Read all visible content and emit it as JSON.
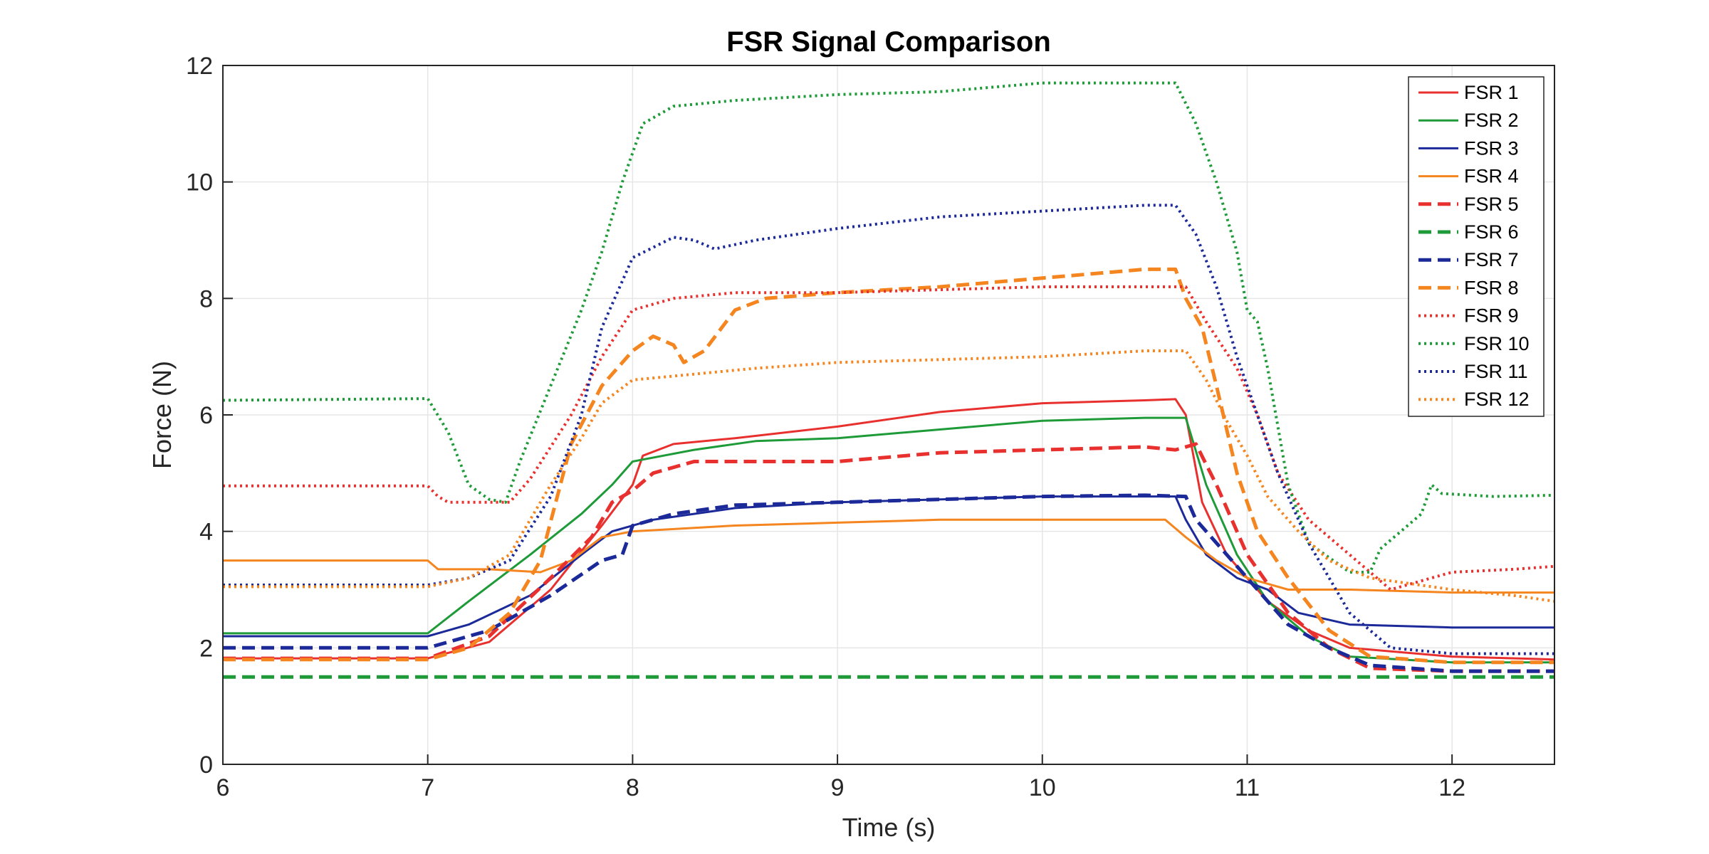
{
  "chart_data": {
    "type": "line",
    "title": "FSR Signal Comparison",
    "xlabel": "Time (s)",
    "ylabel": "Force (N)",
    "xlim": [
      6,
      12.5
    ],
    "ylim": [
      0,
      12
    ],
    "xticks": [
      6,
      7,
      8,
      9,
      10,
      11,
      12
    ],
    "yticks": [
      0,
      2,
      4,
      6,
      8,
      10,
      12
    ],
    "grid": true,
    "legend_position": "top-right",
    "colors": {
      "red": "#e8312f",
      "green": "#1e9b38",
      "blue": "#1c2a99",
      "orange": "#f5851f"
    },
    "series": [
      {
        "name": "FSR 1",
        "color": "#e8312f",
        "style": "solid",
        "points": [
          [
            6,
            1.82
          ],
          [
            7,
            1.82
          ],
          [
            7.3,
            2.1
          ],
          [
            7.6,
            3.0
          ],
          [
            7.85,
            4.1
          ],
          [
            8.0,
            4.8
          ],
          [
            8.05,
            5.3
          ],
          [
            8.2,
            5.5
          ],
          [
            8.5,
            5.6
          ],
          [
            9.0,
            5.8
          ],
          [
            9.5,
            6.05
          ],
          [
            10.0,
            6.2
          ],
          [
            10.5,
            6.25
          ],
          [
            10.65,
            6.27
          ],
          [
            10.7,
            6.0
          ],
          [
            10.78,
            4.5
          ],
          [
            10.9,
            3.6
          ],
          [
            11.1,
            2.8
          ],
          [
            11.3,
            2.3
          ],
          [
            11.5,
            2.0
          ],
          [
            12.0,
            1.85
          ],
          [
            12.5,
            1.8
          ]
        ]
      },
      {
        "name": "FSR 2",
        "color": "#1e9b38",
        "style": "solid",
        "points": [
          [
            6,
            2.25
          ],
          [
            7,
            2.25
          ],
          [
            7.2,
            2.8
          ],
          [
            7.5,
            3.6
          ],
          [
            7.75,
            4.3
          ],
          [
            7.9,
            4.8
          ],
          [
            8.0,
            5.2
          ],
          [
            8.3,
            5.4
          ],
          [
            8.6,
            5.55
          ],
          [
            9.0,
            5.6
          ],
          [
            9.5,
            5.75
          ],
          [
            10.0,
            5.9
          ],
          [
            10.5,
            5.95
          ],
          [
            10.7,
            5.95
          ],
          [
            10.8,
            4.8
          ],
          [
            10.95,
            3.6
          ],
          [
            11.1,
            2.8
          ],
          [
            11.3,
            2.2
          ],
          [
            11.5,
            1.85
          ],
          [
            12.0,
            1.75
          ],
          [
            12.5,
            1.75
          ]
        ]
      },
      {
        "name": "FSR 3",
        "color": "#1c2a99",
        "style": "solid",
        "points": [
          [
            6,
            2.2
          ],
          [
            7,
            2.2
          ],
          [
            7.2,
            2.4
          ],
          [
            7.5,
            2.9
          ],
          [
            7.75,
            3.6
          ],
          [
            7.9,
            4.0
          ],
          [
            8.1,
            4.2
          ],
          [
            8.5,
            4.4
          ],
          [
            9.0,
            4.5
          ],
          [
            9.5,
            4.55
          ],
          [
            10.0,
            4.6
          ],
          [
            10.5,
            4.6
          ],
          [
            10.65,
            4.6
          ],
          [
            10.7,
            4.2
          ],
          [
            10.8,
            3.6
          ],
          [
            10.95,
            3.2
          ],
          [
            11.1,
            3.0
          ],
          [
            11.25,
            2.6
          ],
          [
            11.5,
            2.4
          ],
          [
            12.0,
            2.35
          ],
          [
            12.5,
            2.35
          ]
        ]
      },
      {
        "name": "FSR 4",
        "color": "#f5851f",
        "style": "solid",
        "points": [
          [
            6,
            3.5
          ],
          [
            7,
            3.5
          ],
          [
            7.05,
            3.35
          ],
          [
            7.3,
            3.35
          ],
          [
            7.55,
            3.3
          ],
          [
            7.7,
            3.5
          ],
          [
            7.85,
            3.9
          ],
          [
            8.0,
            4.0
          ],
          [
            8.5,
            4.1
          ],
          [
            9.0,
            4.15
          ],
          [
            9.5,
            4.2
          ],
          [
            10.0,
            4.2
          ],
          [
            10.6,
            4.2
          ],
          [
            10.7,
            3.9
          ],
          [
            10.85,
            3.5
          ],
          [
            11.0,
            3.2
          ],
          [
            11.2,
            3.0
          ],
          [
            11.5,
            3.0
          ],
          [
            12.0,
            2.95
          ],
          [
            12.5,
            2.95
          ]
        ]
      },
      {
        "name": "FSR 5",
        "color": "#e8312f",
        "style": "dashed",
        "points": [
          [
            6,
            1.82
          ],
          [
            7,
            1.82
          ],
          [
            7.3,
            2.2
          ],
          [
            7.6,
            3.2
          ],
          [
            7.8,
            3.9
          ],
          [
            7.9,
            4.5
          ],
          [
            8.0,
            4.7
          ],
          [
            8.1,
            5.0
          ],
          [
            8.3,
            5.2
          ],
          [
            8.6,
            5.2
          ],
          [
            9.0,
            5.2
          ],
          [
            9.5,
            5.35
          ],
          [
            10.0,
            5.4
          ],
          [
            10.5,
            5.45
          ],
          [
            10.65,
            5.4
          ],
          [
            10.75,
            5.5
          ],
          [
            10.85,
            4.8
          ],
          [
            11.0,
            3.6
          ],
          [
            11.2,
            2.6
          ],
          [
            11.4,
            2.0
          ],
          [
            11.6,
            1.65
          ],
          [
            12.0,
            1.6
          ],
          [
            12.5,
            1.6
          ]
        ]
      },
      {
        "name": "FSR 6",
        "color": "#1e9b38",
        "style": "dashed",
        "points": [
          [
            6,
            1.5
          ],
          [
            12.5,
            1.5
          ]
        ]
      },
      {
        "name": "FSR 7",
        "color": "#1c2a99",
        "style": "dashed",
        "points": [
          [
            6,
            2.0
          ],
          [
            7,
            2.0
          ],
          [
            7.3,
            2.3
          ],
          [
            7.6,
            2.9
          ],
          [
            7.85,
            3.5
          ],
          [
            7.95,
            3.6
          ],
          [
            8.0,
            4.1
          ],
          [
            8.2,
            4.3
          ],
          [
            8.5,
            4.45
          ],
          [
            9.0,
            4.5
          ],
          [
            9.5,
            4.55
          ],
          [
            10.0,
            4.6
          ],
          [
            10.5,
            4.62
          ],
          [
            10.7,
            4.6
          ],
          [
            10.75,
            4.2
          ],
          [
            10.85,
            3.8
          ],
          [
            11.0,
            3.2
          ],
          [
            11.2,
            2.4
          ],
          [
            11.4,
            2.0
          ],
          [
            11.6,
            1.7
          ],
          [
            12.0,
            1.6
          ],
          [
            12.5,
            1.6
          ]
        ]
      },
      {
        "name": "FSR 8",
        "color": "#f5851f",
        "style": "dashed",
        "points": [
          [
            6,
            1.8
          ],
          [
            7,
            1.8
          ],
          [
            7.2,
            2.0
          ],
          [
            7.4,
            2.6
          ],
          [
            7.55,
            3.5
          ],
          [
            7.7,
            5.5
          ],
          [
            7.85,
            6.5
          ],
          [
            8.0,
            7.1
          ],
          [
            8.1,
            7.35
          ],
          [
            8.2,
            7.2
          ],
          [
            8.25,
            6.9
          ],
          [
            8.35,
            7.1
          ],
          [
            8.5,
            7.8
          ],
          [
            8.65,
            8.0
          ],
          [
            9.0,
            8.1
          ],
          [
            9.5,
            8.2
          ],
          [
            10.0,
            8.35
          ],
          [
            10.5,
            8.5
          ],
          [
            10.65,
            8.5
          ],
          [
            10.7,
            8.0
          ],
          [
            10.78,
            7.5
          ],
          [
            10.85,
            6.5
          ],
          [
            10.95,
            5.0
          ],
          [
            11.05,
            4.0
          ],
          [
            11.2,
            3.2
          ],
          [
            11.4,
            2.3
          ],
          [
            11.6,
            1.85
          ],
          [
            12.0,
            1.75
          ],
          [
            12.5,
            1.75
          ]
        ]
      },
      {
        "name": "FSR 9",
        "color": "#e8312f",
        "style": "dotted",
        "points": [
          [
            6,
            4.78
          ],
          [
            7,
            4.78
          ],
          [
            7.05,
            4.6
          ],
          [
            7.1,
            4.5
          ],
          [
            7.4,
            4.5
          ],
          [
            7.5,
            4.9
          ],
          [
            7.7,
            6.0
          ],
          [
            7.85,
            7.0
          ],
          [
            8.0,
            7.8
          ],
          [
            8.2,
            8.0
          ],
          [
            8.5,
            8.1
          ],
          [
            9.0,
            8.1
          ],
          [
            9.5,
            8.15
          ],
          [
            10.0,
            8.2
          ],
          [
            10.5,
            8.2
          ],
          [
            10.7,
            8.2
          ],
          [
            10.8,
            7.6
          ],
          [
            10.95,
            6.8
          ],
          [
            11.05,
            6.0
          ],
          [
            11.15,
            5.0
          ],
          [
            11.3,
            4.2
          ],
          [
            11.5,
            3.6
          ],
          [
            11.7,
            3.0
          ],
          [
            11.9,
            3.2
          ],
          [
            12.0,
            3.3
          ],
          [
            12.3,
            3.35
          ],
          [
            12.5,
            3.4
          ]
        ]
      },
      {
        "name": "FSR 10",
        "color": "#1e9b38",
        "style": "dotted",
        "points": [
          [
            6,
            6.25
          ],
          [
            7,
            6.28
          ],
          [
            7.1,
            5.7
          ],
          [
            7.2,
            4.8
          ],
          [
            7.3,
            4.55
          ],
          [
            7.38,
            4.5
          ],
          [
            7.45,
            5.2
          ],
          [
            7.6,
            6.5
          ],
          [
            7.75,
            7.8
          ],
          [
            7.85,
            8.8
          ],
          [
            7.95,
            10.0
          ],
          [
            8.05,
            11.0
          ],
          [
            8.2,
            11.3
          ],
          [
            8.5,
            11.4
          ],
          [
            9.0,
            11.5
          ],
          [
            9.5,
            11.55
          ],
          [
            10.0,
            11.7
          ],
          [
            10.5,
            11.7
          ],
          [
            10.65,
            11.7
          ],
          [
            10.75,
            11.0
          ],
          [
            10.85,
            10.0
          ],
          [
            10.95,
            8.8
          ],
          [
            11.0,
            7.8
          ],
          [
            11.05,
            7.6
          ],
          [
            11.1,
            6.8
          ],
          [
            11.2,
            4.8
          ],
          [
            11.3,
            3.8
          ],
          [
            11.5,
            3.3
          ],
          [
            11.6,
            3.3
          ],
          [
            11.65,
            3.7
          ],
          [
            11.75,
            4.0
          ],
          [
            11.85,
            4.3
          ],
          [
            11.9,
            4.8
          ],
          [
            11.95,
            4.65
          ],
          [
            12.2,
            4.6
          ],
          [
            12.5,
            4.62
          ]
        ]
      },
      {
        "name": "FSR 11",
        "color": "#1c2a99",
        "style": "dotted",
        "points": [
          [
            6,
            3.08
          ],
          [
            7,
            3.08
          ],
          [
            7.2,
            3.2
          ],
          [
            7.4,
            3.5
          ],
          [
            7.6,
            4.6
          ],
          [
            7.75,
            6.0
          ],
          [
            7.85,
            7.5
          ],
          [
            8.0,
            8.7
          ],
          [
            8.2,
            9.05
          ],
          [
            8.3,
            9.0
          ],
          [
            8.4,
            8.85
          ],
          [
            8.6,
            9.0
          ],
          [
            9.0,
            9.2
          ],
          [
            9.5,
            9.4
          ],
          [
            10.0,
            9.5
          ],
          [
            10.5,
            9.6
          ],
          [
            10.65,
            9.6
          ],
          [
            10.75,
            9.1
          ],
          [
            10.85,
            8.2
          ],
          [
            10.95,
            7.0
          ],
          [
            11.05,
            6.0
          ],
          [
            11.15,
            5.0
          ],
          [
            11.3,
            3.8
          ],
          [
            11.5,
            2.6
          ],
          [
            11.7,
            2.0
          ],
          [
            12.0,
            1.9
          ],
          [
            12.5,
            1.9
          ]
        ]
      },
      {
        "name": "FSR 12",
        "color": "#f5851f",
        "style": "dotted",
        "points": [
          [
            6,
            3.05
          ],
          [
            7,
            3.05
          ],
          [
            7.2,
            3.2
          ],
          [
            7.4,
            3.6
          ],
          [
            7.6,
            4.8
          ],
          [
            7.75,
            5.6
          ],
          [
            7.85,
            6.2
          ],
          [
            8.0,
            6.6
          ],
          [
            8.3,
            6.7
          ],
          [
            8.6,
            6.8
          ],
          [
            9.0,
            6.9
          ],
          [
            9.5,
            6.95
          ],
          [
            10.0,
            7.0
          ],
          [
            10.5,
            7.1
          ],
          [
            10.7,
            7.1
          ],
          [
            10.8,
            6.6
          ],
          [
            10.9,
            5.9
          ],
          [
            11.0,
            5.3
          ],
          [
            11.1,
            4.6
          ],
          [
            11.25,
            4.0
          ],
          [
            11.4,
            3.5
          ],
          [
            11.6,
            3.2
          ],
          [
            11.8,
            3.1
          ],
          [
            12.0,
            3.0
          ],
          [
            12.3,
            2.9
          ],
          [
            12.5,
            2.8
          ]
        ]
      }
    ]
  }
}
